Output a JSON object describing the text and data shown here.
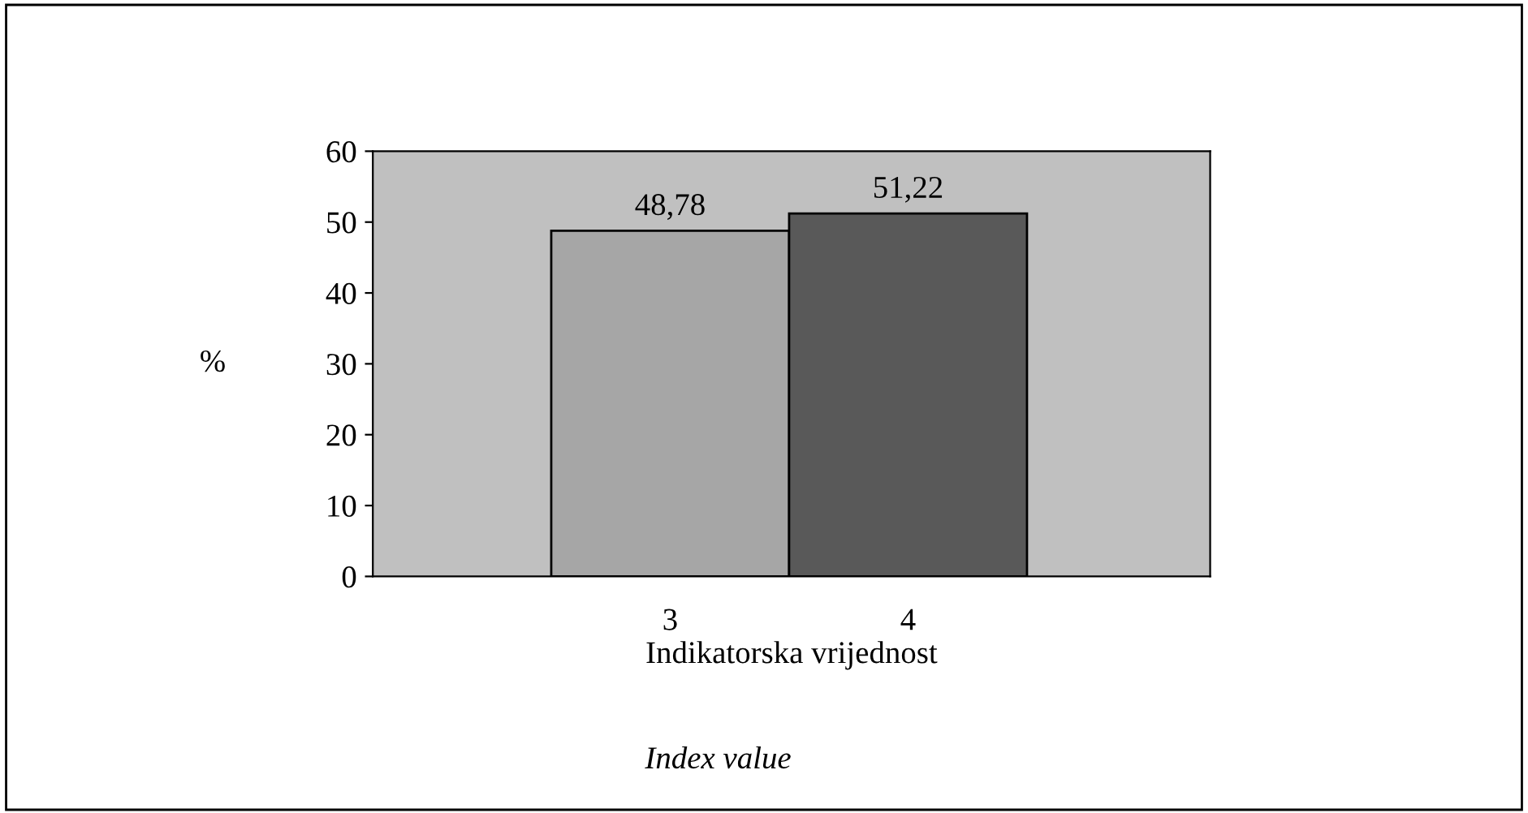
{
  "chart_data": {
    "type": "bar",
    "categories": [
      "3",
      "4"
    ],
    "values": [
      48.78,
      51.22
    ],
    "colors": [
      "#a6a6a6",
      "#595959"
    ],
    "value_labels": [
      "48,78",
      "51,22"
    ],
    "ylabel": "%",
    "xlabel": "Indikatorska vrijednost",
    "annotations": [
      "Index value"
    ],
    "ylim": [
      0,
      60
    ],
    "yticks": [
      0,
      10,
      20,
      30,
      40,
      50,
      60
    ],
    "grid": false
  }
}
